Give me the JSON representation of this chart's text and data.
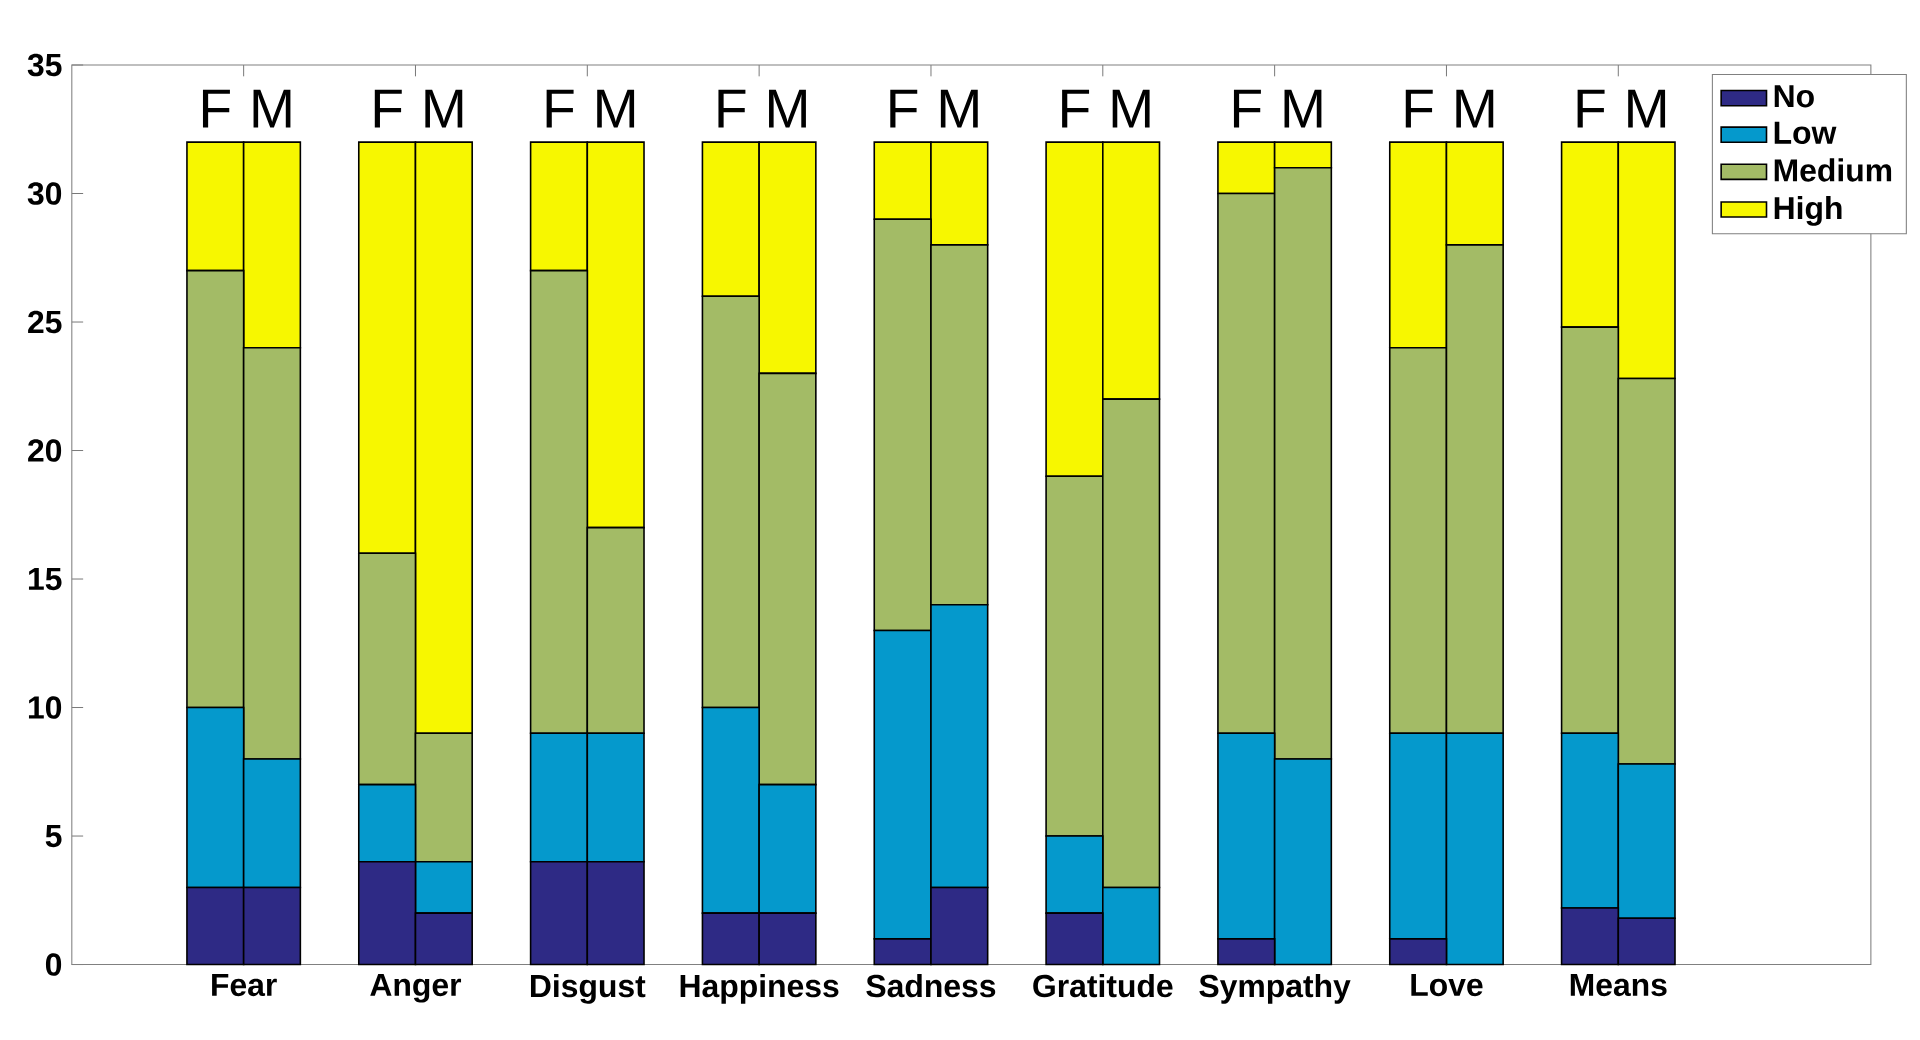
{
  "chart_data": {
    "type": "bar",
    "stacked": true,
    "categories": [
      "F",
      "M",
      "F",
      "M",
      "F",
      "M",
      "F",
      "M",
      "F",
      "M",
      "F",
      "M",
      "F",
      "M",
      "F",
      "M",
      "F",
      "M"
    ],
    "annotations": [
      "Fear",
      "Anger",
      "Disgust",
      "Happiness",
      "Sadness",
      "Gratitude",
      "Sympathy",
      "Love",
      "Means"
    ],
    "series": [
      {
        "name": "No",
        "color": "#2e2a85",
        "values": [
          3,
          3,
          4,
          2,
          4,
          4,
          2,
          2,
          1,
          3,
          2,
          0,
          1,
          0,
          1,
          0,
          2.2,
          1.8
        ]
      },
      {
        "name": "Low",
        "color": "#0599cc",
        "values": [
          7,
          5,
          3,
          2,
          5,
          5,
          8,
          5,
          12,
          11,
          3,
          3,
          8,
          8,
          8,
          9,
          6.8,
          6
        ]
      },
      {
        "name": "Medium",
        "color": "#a3bb66",
        "values": [
          17,
          16,
          9,
          5,
          18,
          8,
          16,
          16,
          16,
          14,
          14,
          19,
          21,
          23,
          15,
          19,
          15.8,
          15
        ]
      },
      {
        "name": "High",
        "color": "#f7f700",
        "values": [
          5,
          8,
          16,
          23,
          5,
          15,
          6,
          9,
          3,
          4,
          13,
          10,
          2,
          1,
          8,
          4,
          7.2,
          9.2
        ]
      }
    ],
    "ylim": [
      0,
      35
    ],
    "yticks": [
      0,
      5,
      10,
      15,
      20,
      25,
      30,
      35
    ],
    "legend": "top right"
  }
}
